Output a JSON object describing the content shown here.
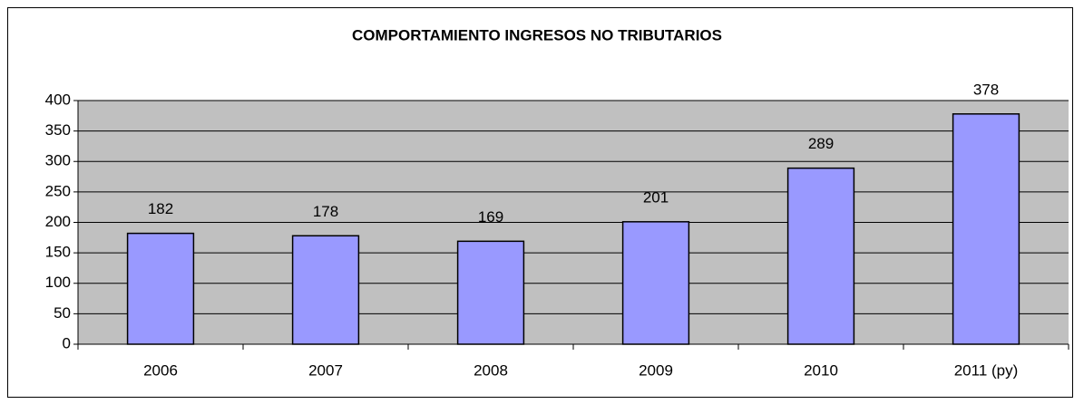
{
  "chart_data": {
    "type": "bar",
    "title": "COMPORTAMIENTO INGRESOS NO TRIBUTARIOS",
    "categories": [
      "2006",
      "2007",
      "2008",
      "2009",
      "2010",
      "2011 (py)"
    ],
    "values": [
      182,
      178,
      169,
      201,
      289,
      378
    ],
    "color": "#9999ff",
    "ylim": [
      0,
      400
    ],
    "yticks": [
      0,
      50,
      100,
      150,
      200,
      250,
      300,
      350,
      400
    ],
    "grid": true
  }
}
